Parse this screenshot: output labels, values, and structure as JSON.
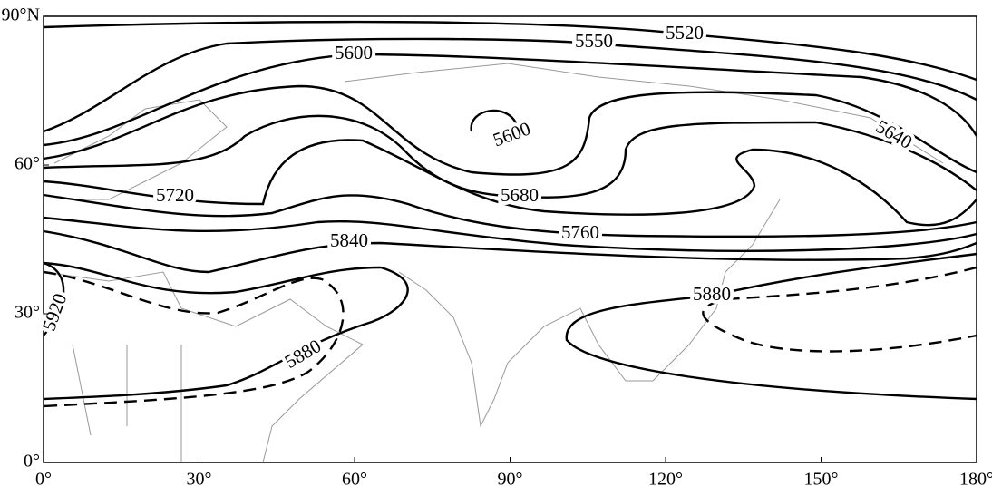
{
  "map": {
    "xticks": [
      {
        "value": 0,
        "label": "0°"
      },
      {
        "value": 30,
        "label": "30°"
      },
      {
        "value": 60,
        "label": "60°"
      },
      {
        "value": 90,
        "label": "90°"
      },
      {
        "value": 120,
        "label": "120°"
      },
      {
        "value": 150,
        "label": "150°"
      },
      {
        "value": 180,
        "label": "180°"
      }
    ],
    "yticks": [
      {
        "value": 0,
        "label": "0°"
      },
      {
        "value": 30,
        "label": "30°"
      },
      {
        "value": 60,
        "label": "60°"
      },
      {
        "value": 90,
        "label": "90°N"
      }
    ],
    "xlim": [
      0,
      180
    ],
    "ylim": [
      0,
      90
    ],
    "contour_labels": [
      5520,
      5550,
      5600,
      5600,
      5640,
      5680,
      5720,
      5760,
      5840,
      5880,
      5880,
      5920
    ]
  }
}
